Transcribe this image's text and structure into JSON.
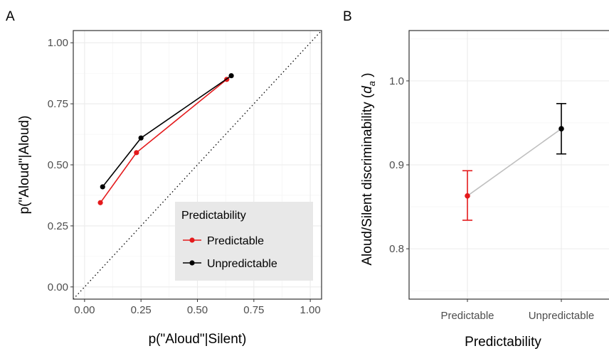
{
  "chart_data": [
    {
      "panel": "A",
      "type": "line",
      "xlabel": "p(\"Aloud\"|Silent)",
      "ylabel": "p(\"Aloud\"|Aloud)",
      "xlim": [
        -0.05,
        1.05
      ],
      "ylim": [
        -0.05,
        1.05
      ],
      "xticks": [
        "0.00",
        "0.25",
        "0.50",
        "0.75",
        "1.00"
      ],
      "yticks": [
        "0.00",
        "0.25",
        "0.50",
        "0.75",
        "1.00"
      ],
      "xtick_values": [
        0,
        0.25,
        0.5,
        0.75,
        1
      ],
      "ytick_values": [
        0,
        0.25,
        0.5,
        0.75,
        1
      ],
      "grid": true,
      "reference_line": "dotted diagonal y = x",
      "legend": {
        "title": "Predictability",
        "position": "bottom-right",
        "entries": [
          "Predictable",
          "Unpredictable"
        ]
      },
      "series": [
        {
          "name": "Predictable",
          "color": "#e41a1c",
          "points": [
            [
              0.07,
              0.345
            ],
            [
              0.23,
              0.55
            ],
            [
              0.63,
              0.85
            ]
          ]
        },
        {
          "name": "Unpredictable",
          "color": "#000000",
          "points": [
            [
              0.08,
              0.41
            ],
            [
              0.25,
              0.61
            ],
            [
              0.65,
              0.865
            ]
          ]
        }
      ]
    },
    {
      "panel": "B",
      "type": "scatter",
      "xlabel": "Predictability",
      "ylabel_main": "Aloud/Silent discriminability (",
      "ylabel_italic": "d",
      "ylabel_sub": "a",
      "ylabel_end": ")",
      "categories": [
        "Predictable",
        "Unpredictable"
      ],
      "values": [
        0.863,
        0.943
      ],
      "error_low": [
        0.834,
        0.913
      ],
      "error_high": [
        0.893,
        0.973
      ],
      "colors": [
        "#e41a1c",
        "#000000"
      ],
      "connector_color": "#bfbfbf",
      "ylim": [
        0.74,
        1.06
      ],
      "yticks": [
        "0.8",
        "0.9",
        "1.0"
      ],
      "ytick_values": [
        0.8,
        0.9,
        1.0
      ],
      "grid": true
    }
  ]
}
